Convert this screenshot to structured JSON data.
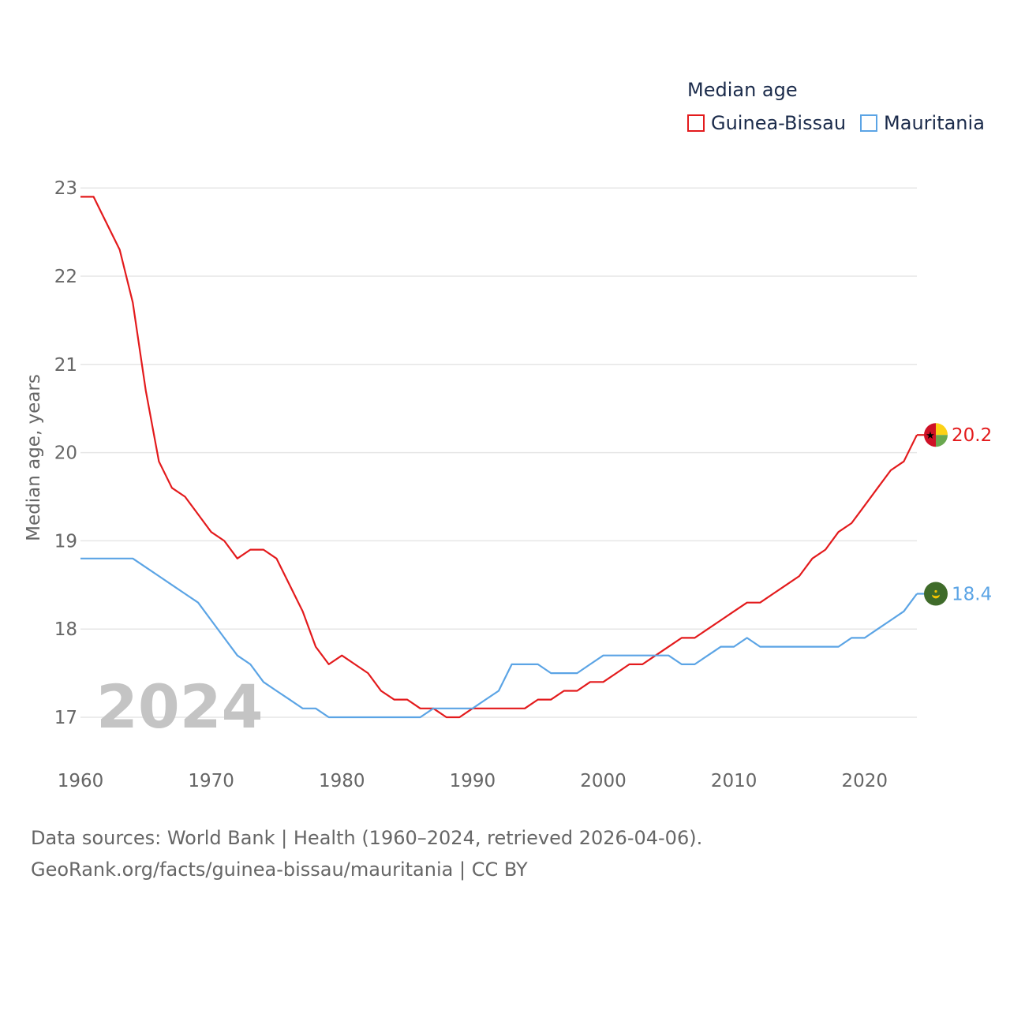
{
  "chart_data": {
    "type": "line",
    "legend_title": "Median age",
    "ylabel": "Median age, years",
    "xlabel": "",
    "year_watermark": "2024",
    "x_ticks": [
      1960,
      1970,
      1980,
      1990,
      2000,
      2010,
      2020
    ],
    "y_ticks": [
      17,
      18,
      19,
      20,
      21,
      22,
      23
    ],
    "xlim": [
      1960,
      2024
    ],
    "ylim": [
      16.6,
      23.2
    ],
    "grid": true,
    "x": [
      1960,
      1961,
      1962,
      1963,
      1964,
      1965,
      1966,
      1967,
      1968,
      1969,
      1970,
      1971,
      1972,
      1973,
      1974,
      1975,
      1976,
      1977,
      1978,
      1979,
      1980,
      1981,
      1982,
      1983,
      1984,
      1985,
      1986,
      1987,
      1988,
      1989,
      1990,
      1991,
      1992,
      1993,
      1994,
      1995,
      1996,
      1997,
      1998,
      1999,
      2000,
      2001,
      2002,
      2003,
      2004,
      2005,
      2006,
      2007,
      2008,
      2009,
      2010,
      2011,
      2012,
      2013,
      2014,
      2015,
      2016,
      2017,
      2018,
      2019,
      2020,
      2021,
      2022,
      2023,
      2024
    ],
    "series": [
      {
        "name": "Guinea-Bissau",
        "color": "#e31a1c",
        "end_label": "20.2",
        "values": [
          22.9,
          22.9,
          22.6,
          22.3,
          21.7,
          20.7,
          19.9,
          19.6,
          19.5,
          19.3,
          19.1,
          19.0,
          18.8,
          18.9,
          18.9,
          18.8,
          18.5,
          18.2,
          17.8,
          17.6,
          17.7,
          17.6,
          17.5,
          17.3,
          17.2,
          17.2,
          17.1,
          17.1,
          17.0,
          17.0,
          17.1,
          17.1,
          17.1,
          17.1,
          17.1,
          17.2,
          17.2,
          17.3,
          17.3,
          17.4,
          17.4,
          17.5,
          17.6,
          17.6,
          17.7,
          17.8,
          17.9,
          17.9,
          18.0,
          18.1,
          18.2,
          18.3,
          18.3,
          18.4,
          18.5,
          18.6,
          18.8,
          18.9,
          19.1,
          19.2,
          19.4,
          19.6,
          19.8,
          19.9,
          20.2
        ]
      },
      {
        "name": "Mauritania",
        "color": "#5ba4e5",
        "end_label": "18.4",
        "values": [
          18.8,
          18.8,
          18.8,
          18.8,
          18.8,
          18.7,
          18.6,
          18.5,
          18.4,
          18.3,
          18.1,
          17.9,
          17.7,
          17.6,
          17.4,
          17.3,
          17.2,
          17.1,
          17.1,
          17.0,
          17.0,
          17.0,
          17.0,
          17.0,
          17.0,
          17.0,
          17.0,
          17.1,
          17.1,
          17.1,
          17.1,
          17.2,
          17.3,
          17.6,
          17.6,
          17.6,
          17.5,
          17.5,
          17.5,
          17.6,
          17.7,
          17.7,
          17.7,
          17.7,
          17.7,
          17.7,
          17.6,
          17.6,
          17.7,
          17.8,
          17.8,
          17.9,
          17.8,
          17.8,
          17.8,
          17.8,
          17.8,
          17.8,
          17.8,
          17.9,
          17.9,
          18.0,
          18.1,
          18.2,
          18.4
        ]
      }
    ]
  },
  "footer": {
    "line1": "Data sources: World Bank | Health (1960–2024, retrieved 2026-04-06).",
    "line2": "GeoRank.org/facts/guinea-bissau/mauritania | CC BY"
  }
}
